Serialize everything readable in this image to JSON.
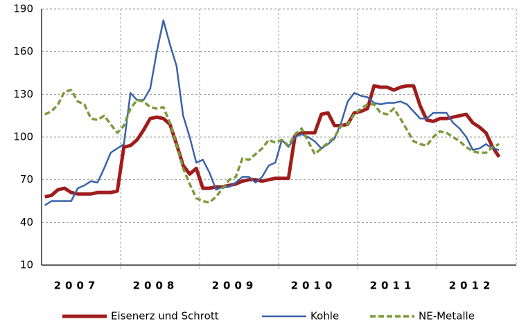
{
  "chart_data": {
    "type": "line",
    "categories": [
      null,
      null,
      null,
      null,
      null,
      "2007",
      null,
      null,
      null,
      null,
      null,
      null,
      null,
      null,
      null,
      null,
      null,
      "2008",
      null,
      null,
      null,
      null,
      null,
      null,
      null,
      null,
      null,
      null,
      null,
      "2009",
      null,
      null,
      null,
      null,
      null,
      null,
      null,
      null,
      null,
      null,
      null,
      "2010",
      null,
      null,
      null,
      null,
      null,
      null,
      null,
      null,
      null,
      null,
      null,
      "2011",
      null,
      null,
      null,
      null,
      null,
      null,
      null,
      null,
      null,
      null,
      null,
      "2012",
      null,
      null,
      null,
      null
    ],
    "series": [
      {
        "name": "Eisenerz und Schrott",
        "color": "#a01c1c",
        "width": 5,
        "dashed": false,
        "values": [
          58,
          59,
          63,
          64,
          61,
          60,
          60,
          60,
          61,
          61,
          61,
          62,
          93,
          94,
          98,
          105,
          113,
          114,
          113,
          109,
          95,
          80,
          74,
          78,
          64,
          64,
          65,
          65,
          66,
          67,
          69,
          70,
          70,
          69,
          70,
          71,
          71,
          71,
          101,
          103,
          103,
          103,
          116,
          117,
          108,
          108,
          109,
          117,
          118,
          120,
          136,
          135,
          135,
          133,
          135,
          136,
          136,
          122,
          112,
          111,
          113,
          113,
          114,
          115,
          116,
          110,
          107,
          103,
          93,
          86
        ]
      },
      {
        "name": "Kohle",
        "color": "#3a62aa",
        "width": 2.5,
        "dashed": false,
        "values": [
          52,
          55,
          55,
          55,
          55,
          64,
          66,
          69,
          68,
          78,
          89,
          92,
          95,
          131,
          126,
          126,
          134,
          160,
          182,
          165,
          150,
          115,
          100,
          82,
          84,
          75,
          63,
          65,
          65,
          68,
          72,
          72,
          68,
          72,
          80,
          82,
          98,
          93,
          100,
          102,
          100,
          97,
          92,
          95,
          99,
          110,
          125,
          131,
          129,
          128,
          124,
          123,
          124,
          124,
          125,
          123,
          118,
          113,
          113,
          117,
          117,
          117,
          110,
          106,
          100,
          91,
          92,
          95,
          92,
          91
        ]
      },
      {
        "name": "NE-Metalle",
        "color": "#7d9a3c",
        "width": 3.5,
        "dashed": true,
        "values": [
          116,
          118,
          123,
          132,
          133,
          125,
          123,
          113,
          112,
          115,
          109,
          103,
          108,
          120,
          126,
          125,
          121,
          120,
          121,
          110,
          95,
          78,
          67,
          57,
          55,
          54,
          58,
          64,
          70,
          72,
          85,
          84,
          88,
          92,
          98,
          96,
          98,
          94,
          102,
          106,
          97,
          88,
          92,
          96,
          100,
          108,
          109,
          116,
          120,
          123,
          123,
          117,
          116,
          120,
          113,
          105,
          97,
          95,
          94,
          100,
          104,
          103,
          100,
          97,
          93,
          90,
          89,
          89,
          93,
          95
        ]
      }
    ],
    "ylim": [
      10,
      190
    ],
    "yticks": [
      10,
      40,
      70,
      100,
      130,
      160,
      190
    ],
    "grid": true
  }
}
